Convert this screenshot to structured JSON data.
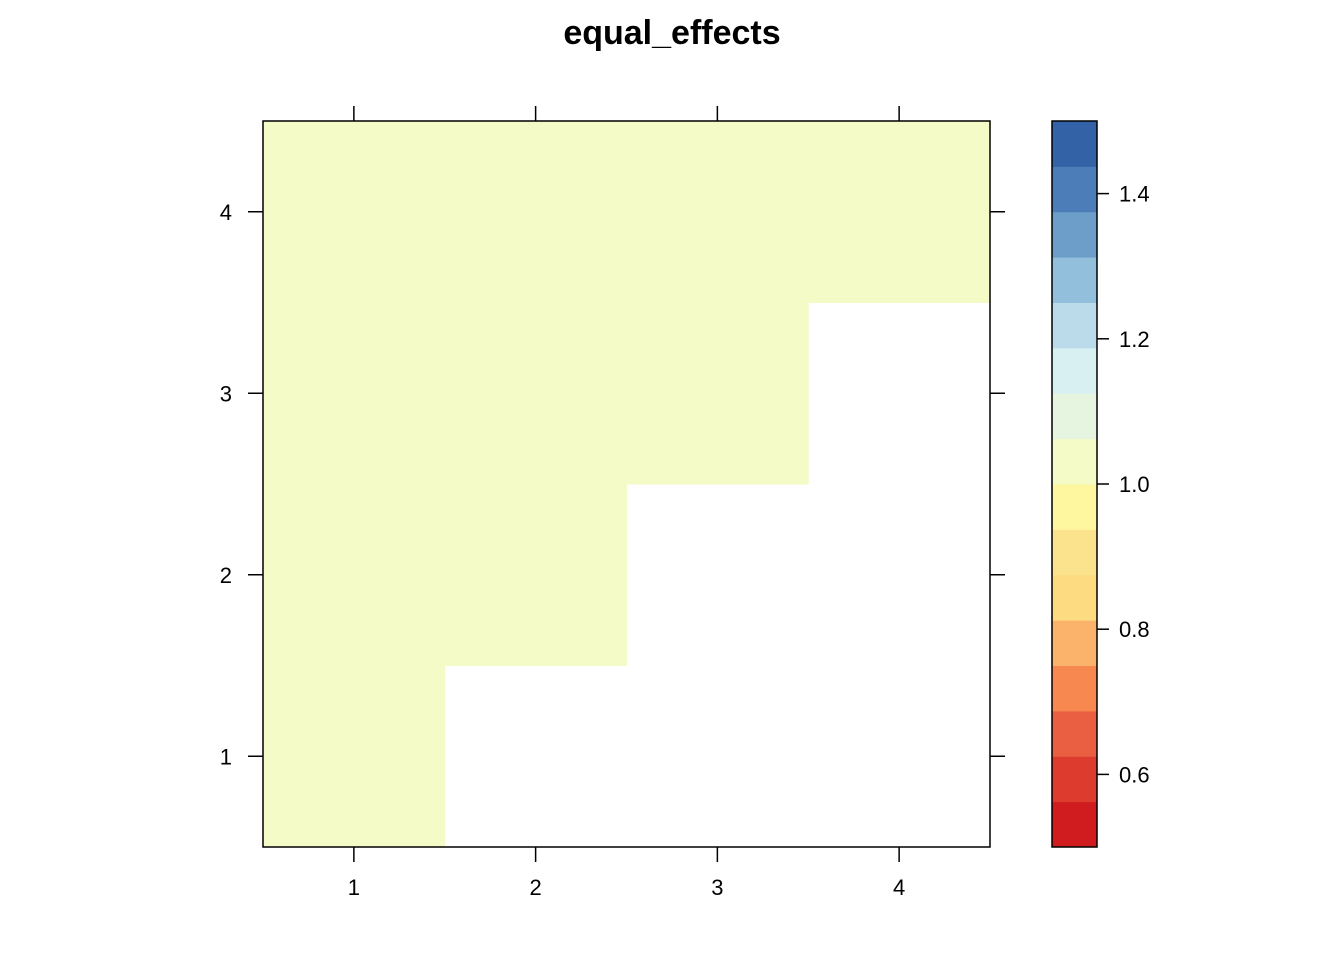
{
  "chart_data": {
    "type": "heatmap",
    "title": "equal_effects",
    "xlabel": "",
    "ylabel": "",
    "x_categories": [
      "1",
      "2",
      "3",
      "4"
    ],
    "y_categories": [
      "1",
      "2",
      "3",
      "4"
    ],
    "cells": [
      {
        "x": "1",
        "y": "1",
        "value": 1.0
      },
      {
        "x": "1",
        "y": "2",
        "value": 1.0
      },
      {
        "x": "2",
        "y": "2",
        "value": 1.0
      },
      {
        "x": "1",
        "y": "3",
        "value": 1.0
      },
      {
        "x": "2",
        "y": "3",
        "value": 1.0
      },
      {
        "x": "3",
        "y": "3",
        "value": 1.0
      },
      {
        "x": "1",
        "y": "4",
        "value": 1.0
      },
      {
        "x": "2",
        "y": "4",
        "value": 1.0
      },
      {
        "x": "3",
        "y": "4",
        "value": 1.0
      },
      {
        "x": "4",
        "y": "4",
        "value": 1.0
      }
    ],
    "missing_color": "#ffffff",
    "colorbar": {
      "range": [
        0.5,
        1.5
      ],
      "ticks": [
        "0.6",
        "0.8",
        "1.0",
        "1.2",
        "1.4"
      ],
      "tick_values": [
        0.6,
        0.8,
        1.0,
        1.2,
        1.4
      ],
      "colors": [
        "#d01c1f",
        "#dc3b2e",
        "#ea5f42",
        "#f7884f",
        "#fbb36c",
        "#fddb80",
        "#fbe38e",
        "#fff7a0",
        "#f5fbc6",
        "#e6f5df",
        "#d9f0f3",
        "#bbdbea",
        "#92c0dc",
        "#6c9ec9",
        "#4c7db8",
        "#3462a6"
      ]
    },
    "grid": false,
    "legend": "right"
  }
}
